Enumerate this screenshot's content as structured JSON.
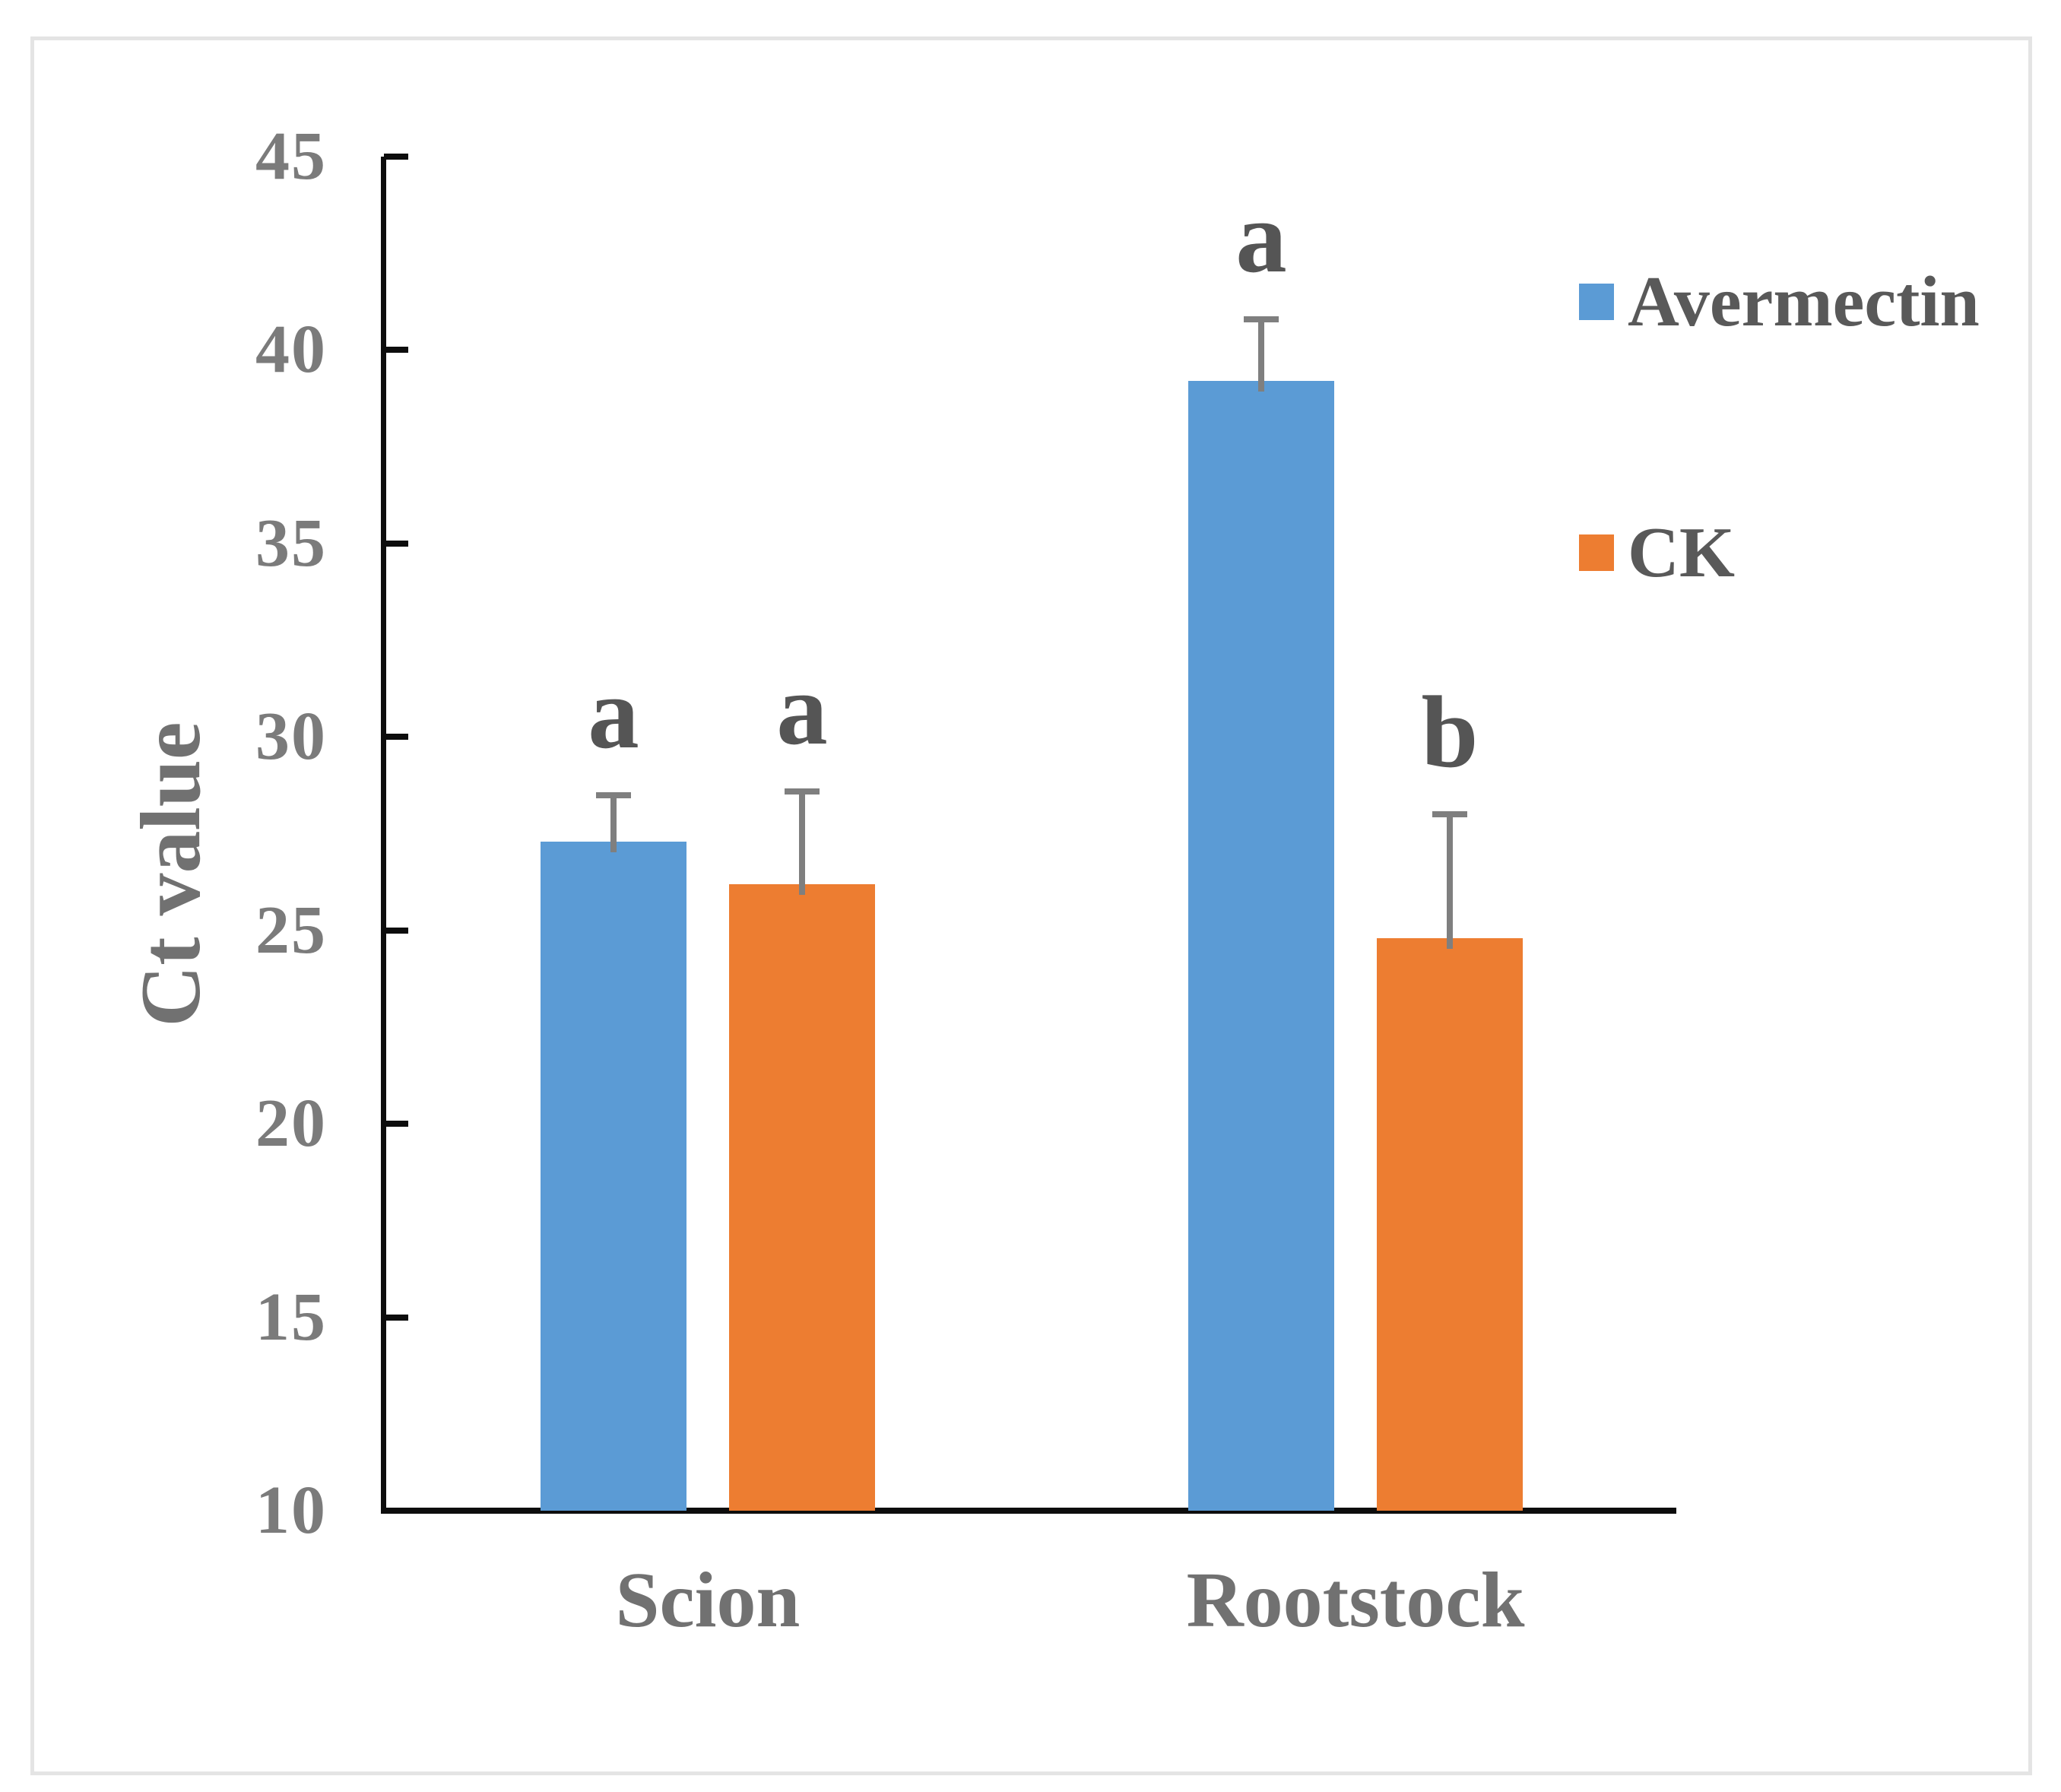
{
  "figure": {
    "ylabel": "Ct value",
    "legend": {
      "items": [
        {
          "label": "Avermectin",
          "color": "#5B9BD5"
        },
        {
          "label": "CK",
          "color": "#ED7D31"
        }
      ]
    }
  },
  "chart_data": {
    "type": "bar",
    "title": "",
    "xlabel": "",
    "ylabel": "Ct value",
    "categories": [
      "Scion",
      "Rootstock"
    ],
    "series": [
      {
        "name": "Avermectin",
        "color": "#5B9BD5",
        "values": [
          27.3,
          39.2
        ],
        "errors": [
          1.2,
          1.6
        ],
        "sig_letters": [
          "a",
          "a"
        ]
      },
      {
        "name": "CK",
        "color": "#ED7D31",
        "values": [
          26.2,
          24.8
        ],
        "errors": [
          2.4,
          3.2
        ],
        "sig_letters": [
          "a",
          "b"
        ]
      }
    ],
    "ylim": [
      10,
      45
    ],
    "yticks": [
      10,
      15,
      20,
      25,
      30,
      35,
      40,
      45
    ],
    "grid": false,
    "legend_position": "right",
    "error_bars": "upper_only",
    "letter_color": "#555555",
    "axis_color": "#0d0d0d"
  }
}
